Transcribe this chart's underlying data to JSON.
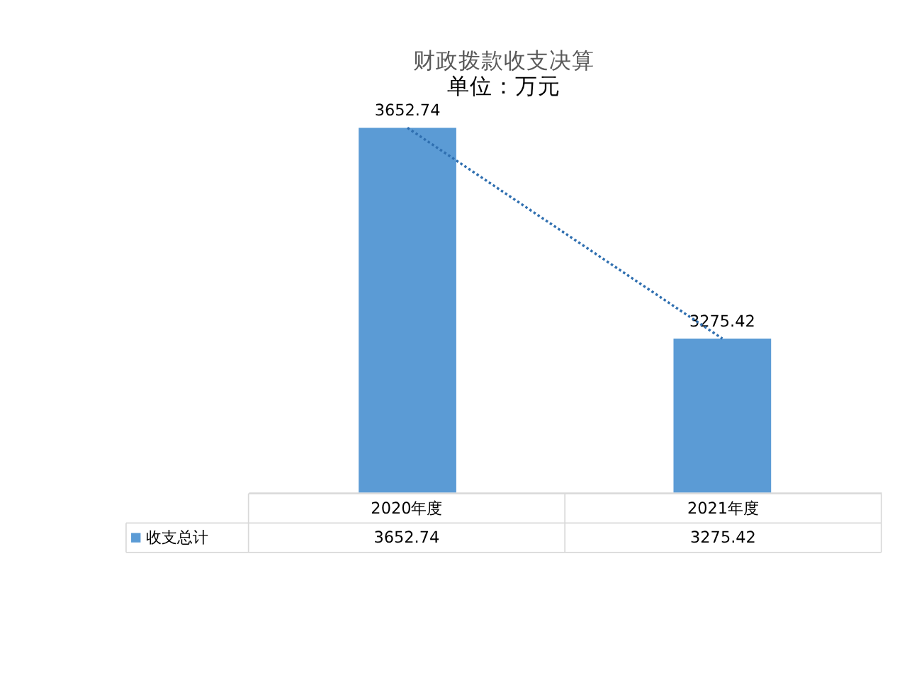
{
  "chart_data": {
    "type": "bar",
    "title": "财政拨款收支决算",
    "subtitle": "单位：万元",
    "categories": [
      "2020年度",
      "2021年度"
    ],
    "series": [
      {
        "name": "收支总计",
        "color": "#5b9bd5",
        "values": [
          3652.74,
          3275.42
        ]
      },
      {
        "type": "line",
        "color": "#2f6fb0",
        "line_style": "dotted",
        "values": [
          3652.74,
          3275.42
        ]
      }
    ],
    "ylim": [
      3000,
      3652.74
    ],
    "data_labels": true,
    "tick_labels": false,
    "grid": false,
    "legend": "bottom"
  }
}
